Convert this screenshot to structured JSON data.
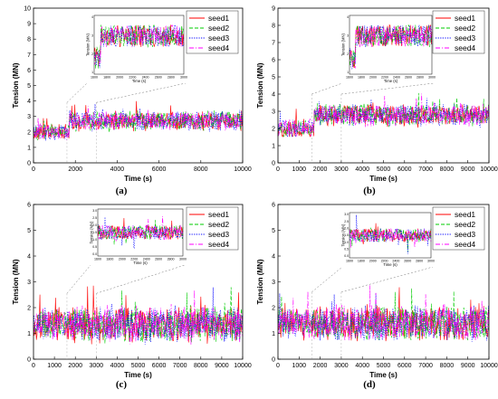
{
  "chart_data": [
    {
      "type": "line",
      "caption": "(a)",
      "xlabel": "Time (s)",
      "ylabel": "Tension (MN)",
      "xlim": [
        0,
        10000
      ],
      "ylim": [
        0,
        10
      ],
      "xticks": [
        0,
        2000,
        4000,
        6000,
        8000,
        10000
      ],
      "yticks": [
        0,
        1,
        2,
        3,
        4,
        5,
        6,
        7,
        8,
        9,
        10
      ],
      "grid": false,
      "legend_position": "top-right",
      "series": [
        {
          "name": "seed1",
          "color": "#ff0000",
          "dash": "solid",
          "mean_before": 2.0,
          "mean_after": 2.7,
          "amplitude": 0.55
        },
        {
          "name": "seed2",
          "color": "#00cc00",
          "dash": "dashed",
          "mean_before": 2.0,
          "mean_after": 2.7,
          "amplitude": 0.55
        },
        {
          "name": "seed3",
          "color": "#0000ff",
          "dash": "dotted",
          "mean_before": 2.0,
          "mean_after": 2.7,
          "amplitude": 0.55
        },
        {
          "name": "seed4",
          "color": "#ff00ff",
          "dash": "dashdot",
          "mean_before": 2.0,
          "mean_after": 2.7,
          "amplitude": 0.55
        }
      ],
      "step_time": 1700,
      "inset": {
        "xlabel": "Time (s)",
        "ylabel": "Tension (MN)",
        "xlim": [
          1600,
          3000
        ],
        "xticks": [
          "1600",
          "1800",
          "2000",
          "2200",
          "2400",
          "2600",
          "2800",
          "3000"
        ],
        "yticks": [
          "4",
          "3",
          "2",
          "1"
        ]
      }
    },
    {
      "type": "line",
      "caption": "(b)",
      "xlabel": "Time (s)",
      "ylabel": "Tension (MN)",
      "xlim": [
        0,
        10000
      ],
      "ylim": [
        0,
        9
      ],
      "xticks": [
        0,
        1000,
        2000,
        3000,
        4000,
        5000,
        6000,
        7000,
        8000,
        9000,
        10000
      ],
      "yticks": [
        0,
        1,
        2,
        3,
        4,
        5,
        6,
        7,
        8,
        9
      ],
      "grid": false,
      "legend_position": "top-right",
      "series": [
        {
          "name": "seed1",
          "color": "#ff0000",
          "dash": "solid",
          "mean_before": 2.0,
          "mean_after": 2.8,
          "amplitude": 0.55
        },
        {
          "name": "seed2",
          "color": "#00cc00",
          "dash": "dashed",
          "mean_before": 2.0,
          "mean_after": 2.8,
          "amplitude": 0.55
        },
        {
          "name": "seed3",
          "color": "#0000ff",
          "dash": "dotted",
          "mean_before": 2.0,
          "mean_after": 2.8,
          "amplitude": 0.55
        },
        {
          "name": "seed4",
          "color": "#ff00ff",
          "dash": "dashdot",
          "mean_before": 2.0,
          "mean_after": 2.8,
          "amplitude": 0.55
        }
      ],
      "step_time": 1700,
      "inset": {
        "xlabel": "Time (s)",
        "ylabel": "Tension (MN)",
        "xlim": [
          1600,
          3000
        ],
        "xticks": [
          "1600",
          "1800",
          "2000",
          "2200",
          "2400",
          "2600",
          "2800",
          "3000"
        ],
        "yticks": [
          "4",
          "3",
          "2",
          "1"
        ]
      }
    },
    {
      "type": "line",
      "caption": "(c)",
      "xlabel": "Time (s)",
      "ylabel": "Tension (MN)",
      "xlim": [
        0,
        10000
      ],
      "ylim": [
        0,
        6
      ],
      "xticks": [
        0,
        1000,
        2000,
        3000,
        4000,
        5000,
        6000,
        7000,
        8000,
        9000,
        10000
      ],
      "yticks": [
        0,
        1,
        2,
        3,
        4,
        5,
        6
      ],
      "grid": false,
      "legend_position": "top-right",
      "series": [
        {
          "name": "seed1",
          "color": "#ff0000",
          "dash": "solid",
          "mean_before": 1.35,
          "mean_after": 1.35,
          "amplitude": 0.6
        },
        {
          "name": "seed2",
          "color": "#00cc00",
          "dash": "dashed",
          "mean_before": 1.35,
          "mean_after": 1.35,
          "amplitude": 0.6
        },
        {
          "name": "seed3",
          "color": "#0000ff",
          "dash": "dotted",
          "mean_before": 1.35,
          "mean_after": 1.35,
          "amplitude": 0.6
        },
        {
          "name": "seed4",
          "color": "#ff00ff",
          "dash": "dashdot",
          "mean_before": 1.35,
          "mean_after": 1.35,
          "amplitude": 0.6
        }
      ],
      "step_time": 1700,
      "inset": {
        "xlabel": "Time (s)",
        "ylabel": "Tension (MN)",
        "xlim": [
          1600,
          3000
        ],
        "xticks": [
          "1600",
          "1800",
          "2000",
          "2200",
          "2400",
          "2600",
          "2800",
          "3000"
        ],
        "yticks": [
          "3.0",
          "2.5",
          "2.0",
          "1.5",
          "1.0",
          "0.5",
          "0.0"
        ]
      }
    },
    {
      "type": "line",
      "caption": "(d)",
      "xlabel": "Time (s)",
      "ylabel": "Tension (MN)",
      "xlim": [
        0,
        10000
      ],
      "ylim": [
        0,
        6
      ],
      "xticks": [
        0,
        1000,
        2000,
        3000,
        4000,
        5000,
        6000,
        7000,
        8000,
        9000,
        10000
      ],
      "yticks": [
        0,
        1,
        2,
        3,
        4,
        5,
        6
      ],
      "grid": false,
      "legend_position": "top-right",
      "series": [
        {
          "name": "seed1",
          "color": "#ff0000",
          "dash": "solid",
          "mean_before": 1.4,
          "mean_after": 1.4,
          "amplitude": 0.6
        },
        {
          "name": "seed2",
          "color": "#00cc00",
          "dash": "dashed",
          "mean_before": 1.4,
          "mean_after": 1.4,
          "amplitude": 0.6
        },
        {
          "name": "seed3",
          "color": "#0000ff",
          "dash": "dotted",
          "mean_before": 1.4,
          "mean_after": 1.4,
          "amplitude": 0.6
        },
        {
          "name": "seed4",
          "color": "#ff00ff",
          "dash": "dashdot",
          "mean_before": 1.4,
          "mean_after": 1.4,
          "amplitude": 0.6
        }
      ],
      "step_time": 1700,
      "inset": {
        "xlabel": "Time (s)",
        "ylabel": "Tension (MN)",
        "xlim": [
          1600,
          3000
        ],
        "xticks": [
          "1600",
          "1800",
          "2000",
          "2200",
          "2400",
          "2600",
          "2800",
          "3000"
        ],
        "yticks": [
          "3.0",
          "2.5",
          "2.0",
          "1.5",
          "1.0",
          "0.5",
          "0.0"
        ]
      }
    }
  ]
}
